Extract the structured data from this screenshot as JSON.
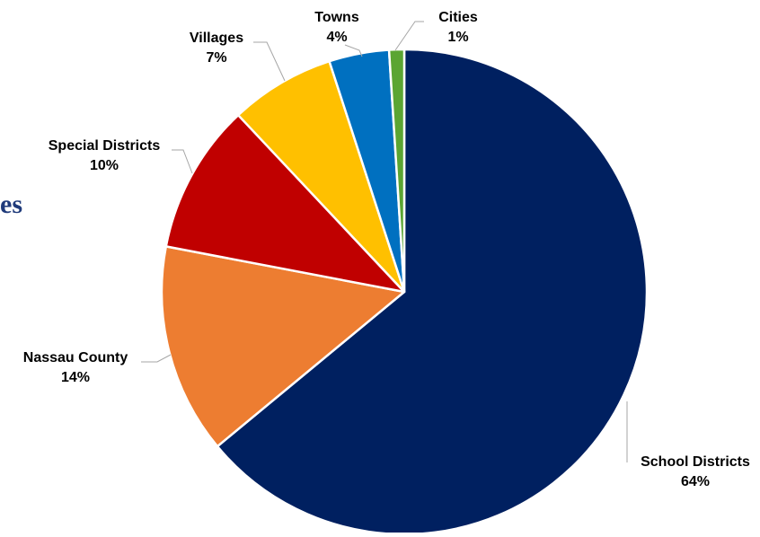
{
  "background_fragment": "es",
  "chart_data": {
    "type": "pie",
    "title": "",
    "slices": [
      {
        "label": "School Districts",
        "value": 64,
        "value_label": "64%",
        "color": "#002060"
      },
      {
        "label": "Nassau County",
        "value": 14,
        "value_label": "14%",
        "color": "#ED7D31"
      },
      {
        "label": "Special Districts",
        "value": 10,
        "value_label": "10%",
        "color": "#C00000"
      },
      {
        "label": "Villages",
        "value": 7,
        "value_label": "7%",
        "color": "#FFC000"
      },
      {
        "label": "Towns",
        "value": 4,
        "value_label": "4%",
        "color": "#0070C0"
      },
      {
        "label": "Cities",
        "value": 1,
        "value_label": "1%",
        "color": "#5BA532"
      }
    ],
    "start_angle": "12 o'clock",
    "direction": "clockwise",
    "legend": "none",
    "data_labels": "outside with leader lines"
  }
}
